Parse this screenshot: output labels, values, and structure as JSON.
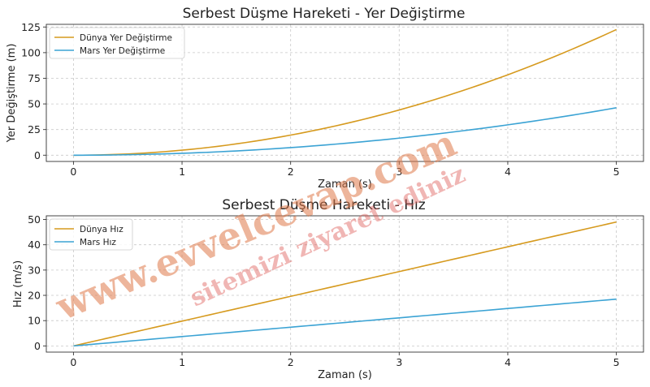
{
  "colors": {
    "earth": "#d69a1e",
    "mars": "#3ba3d4"
  },
  "chart_data": [
    {
      "type": "line",
      "title": "Serbest Düşme Hareketi - Yer Değiştirme",
      "xlabel": "Zaman (s)",
      "ylabel": "Yer Değiştirme (m)",
      "xlim": [
        -0.25,
        5.25
      ],
      "ylim": [
        -6.1,
        127.6
      ],
      "xticks": [
        "0",
        "1",
        "2",
        "3",
        "4",
        "5"
      ],
      "yticks": [
        "0",
        "25",
        "50",
        "75",
        "100",
        "125"
      ],
      "grid": true,
      "legend_position": "top-left",
      "series": [
        {
          "name": "Dünya Yer Değiştirme",
          "color": "#d69a1e",
          "formula": "0.5*9.8*t^2",
          "x": [
            0,
            1,
            2,
            3,
            4,
            5
          ],
          "values": [
            0,
            4.9,
            19.6,
            44.1,
            78.4,
            122.5
          ]
        },
        {
          "name": "Mars Yer Değiştirme",
          "color": "#3ba3d4",
          "formula": "0.5*3.7*t^2",
          "x": [
            0,
            1,
            2,
            3,
            4,
            5
          ],
          "values": [
            0,
            1.85,
            7.4,
            16.65,
            29.6,
            46.25
          ]
        }
      ]
    },
    {
      "type": "line",
      "title": "Serbest Düşme Hareketi - Hız",
      "xlabel": "Zaman (s)",
      "ylabel": "Hız (m/s)",
      "xlim": [
        -0.25,
        5.25
      ],
      "ylim": [
        -2.45,
        51.45
      ],
      "xticks": [
        "0",
        "1",
        "2",
        "3",
        "4",
        "5"
      ],
      "yticks": [
        "0",
        "10",
        "20",
        "30",
        "40",
        "50"
      ],
      "grid": true,
      "legend_position": "top-left",
      "series": [
        {
          "name": "Dünya Hız",
          "color": "#d69a1e",
          "x": [
            0,
            1,
            2,
            3,
            4,
            5
          ],
          "values": [
            0,
            9.8,
            19.6,
            29.4,
            39.2,
            49.0
          ]
        },
        {
          "name": "Mars Hız",
          "color": "#3ba3d4",
          "x": [
            0,
            1,
            2,
            3,
            4,
            5
          ],
          "values": [
            0,
            3.7,
            7.4,
            11.1,
            14.8,
            18.5
          ]
        }
      ]
    }
  ],
  "watermark": {
    "line1": "www.evvelcevap.com",
    "line2": "sitemizi ziyaret ediniz"
  }
}
